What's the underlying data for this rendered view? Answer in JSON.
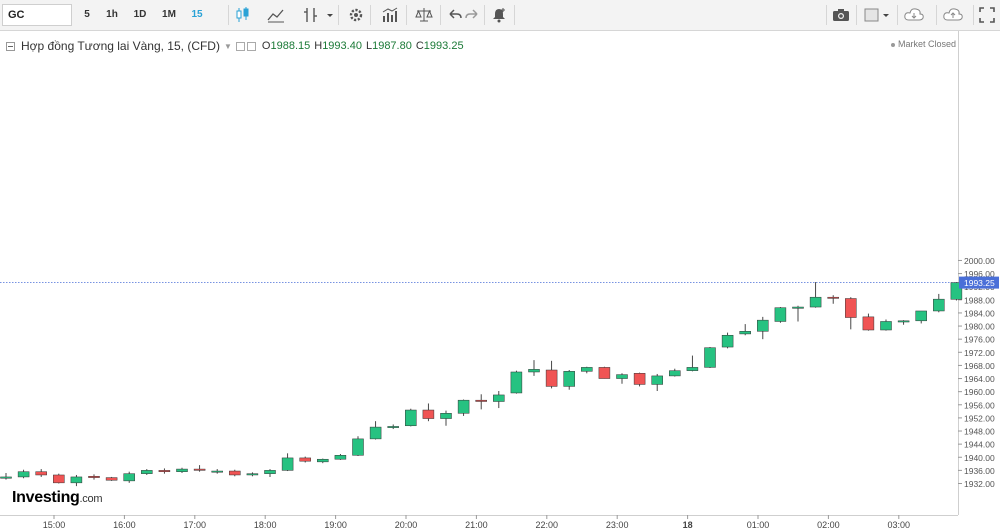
{
  "toolbar": {
    "symbol": "GC",
    "intervals": [
      "5",
      "1h",
      "1D",
      "1M",
      "15"
    ],
    "active_interval": "15",
    "icons": [
      "candle-style-icon",
      "indicators-icon",
      "chart-type-icon",
      "chevron-down-icon",
      "settings-icon",
      "studies-icon",
      "compare-icon",
      "undo-icon",
      "redo-icon",
      "alert-icon",
      "camera-icon",
      "color-box-icon",
      "chevron-down-icon",
      "cloud-download-icon",
      "cloud-upload-icon",
      "fullscreen-icon"
    ]
  },
  "legend": {
    "title": "Hợp đồng Tương lai Vàng, 15, (CFD)",
    "open_label": "O",
    "open": "1988.15",
    "high_label": "H",
    "high": "1993.40",
    "low_label": "L",
    "low": "1987.80",
    "close_label": "C",
    "close": "1993.25"
  },
  "status": {
    "market": "Market Closed"
  },
  "watermark": {
    "brand": "Investing",
    "suffix": ".com"
  },
  "chart_data": {
    "type": "candlestick",
    "interval": "15",
    "y_range": [
      1928,
      2000
    ],
    "y_ticks": [
      "1932.00",
      "1936.00",
      "1940.00",
      "1944.00",
      "1948.00",
      "1952.00",
      "1956.00",
      "1960.00",
      "1964.00",
      "1968.00",
      "1972.00",
      "1976.00",
      "1980.00",
      "1984.00",
      "1988.00",
      "1992.00",
      "1996.00",
      "2000.00"
    ],
    "x_ticks": [
      {
        "label": "15:00",
        "index": 3
      },
      {
        "label": "16:00",
        "index": 7
      },
      {
        "label": "17:00",
        "index": 11
      },
      {
        "label": "18:00",
        "index": 15
      },
      {
        "label": "19:00",
        "index": 19
      },
      {
        "label": "20:00",
        "index": 23
      },
      {
        "label": "21:00",
        "index": 27
      },
      {
        "label": "22:00",
        "index": 31
      },
      {
        "label": "23:00",
        "index": 35
      },
      {
        "label": "18",
        "index": 39
      },
      {
        "label": "01:00",
        "index": 43
      },
      {
        "label": "02:00",
        "index": 47
      },
      {
        "label": "03:00",
        "index": 51
      }
    ],
    "last_price": "1993.25",
    "up_color": "#26c281",
    "down_color": "#f05454",
    "candles": [
      {
        "o": 1933.6,
        "h": 1935.2,
        "l": 1933.2,
        "c": 1934.0
      },
      {
        "o": 1934.0,
        "h": 1936.2,
        "l": 1933.6,
        "c": 1935.6
      },
      {
        "o": 1935.6,
        "h": 1936.4,
        "l": 1934.0,
        "c": 1934.6
      },
      {
        "o": 1934.6,
        "h": 1935.0,
        "l": 1932.0,
        "c": 1932.2
      },
      {
        "o": 1932.2,
        "h": 1934.6,
        "l": 1931.2,
        "c": 1934.0
      },
      {
        "o": 1934.2,
        "h": 1934.8,
        "l": 1933.2,
        "c": 1933.8
      },
      {
        "o": 1933.8,
        "h": 1934.0,
        "l": 1932.8,
        "c": 1933.0
      },
      {
        "o": 1932.8,
        "h": 1935.6,
        "l": 1932.2,
        "c": 1935.0
      },
      {
        "o": 1935.0,
        "h": 1936.4,
        "l": 1934.6,
        "c": 1936.0
      },
      {
        "o": 1936.0,
        "h": 1936.6,
        "l": 1935.0,
        "c": 1935.6
      },
      {
        "o": 1935.6,
        "h": 1936.8,
        "l": 1935.2,
        "c": 1936.4
      },
      {
        "o": 1936.4,
        "h": 1937.6,
        "l": 1935.6,
        "c": 1936.0
      },
      {
        "o": 1935.6,
        "h": 1936.4,
        "l": 1935.0,
        "c": 1935.8
      },
      {
        "o": 1935.8,
        "h": 1936.2,
        "l": 1934.2,
        "c": 1934.6
      },
      {
        "o": 1934.6,
        "h": 1935.4,
        "l": 1934.2,
        "c": 1935.0
      },
      {
        "o": 1935.0,
        "h": 1936.4,
        "l": 1934.0,
        "c": 1936.0
      },
      {
        "o": 1936.0,
        "h": 1941.2,
        "l": 1935.8,
        "c": 1939.8
      },
      {
        "o": 1939.8,
        "h": 1940.2,
        "l": 1938.4,
        "c": 1938.8
      },
      {
        "o": 1938.6,
        "h": 1939.6,
        "l": 1938.2,
        "c": 1939.4
      },
      {
        "o": 1939.4,
        "h": 1941.0,
        "l": 1939.2,
        "c": 1940.6
      },
      {
        "o": 1940.6,
        "h": 1946.4,
        "l": 1940.4,
        "c": 1945.6
      },
      {
        "o": 1945.6,
        "h": 1951.0,
        "l": 1945.4,
        "c": 1949.2
      },
      {
        "o": 1949.2,
        "h": 1950.0,
        "l": 1948.6,
        "c": 1949.4
      },
      {
        "o": 1949.6,
        "h": 1954.8,
        "l": 1949.4,
        "c": 1954.4
      },
      {
        "o": 1954.4,
        "h": 1956.4,
        "l": 1951.0,
        "c": 1951.8
      },
      {
        "o": 1951.8,
        "h": 1954.2,
        "l": 1949.6,
        "c": 1953.4
      },
      {
        "o": 1953.4,
        "h": 1957.6,
        "l": 1952.6,
        "c": 1957.4
      },
      {
        "o": 1957.4,
        "h": 1959.2,
        "l": 1954.6,
        "c": 1957.0
      },
      {
        "o": 1957.0,
        "h": 1960.2,
        "l": 1955.0,
        "c": 1959.0
      },
      {
        "o": 1959.6,
        "h": 1966.4,
        "l": 1959.4,
        "c": 1966.0
      },
      {
        "o": 1966.0,
        "h": 1969.6,
        "l": 1964.8,
        "c": 1966.8
      },
      {
        "o": 1966.6,
        "h": 1969.4,
        "l": 1961.0,
        "c": 1961.6
      },
      {
        "o": 1961.6,
        "h": 1966.6,
        "l": 1960.6,
        "c": 1966.2
      },
      {
        "o": 1966.2,
        "h": 1967.6,
        "l": 1965.6,
        "c": 1967.4
      },
      {
        "o": 1967.4,
        "h": 1967.6,
        "l": 1964.0,
        "c": 1964.0
      },
      {
        "o": 1964.0,
        "h": 1965.6,
        "l": 1962.4,
        "c": 1965.2
      },
      {
        "o": 1965.6,
        "h": 1965.8,
        "l": 1961.6,
        "c": 1962.2
      },
      {
        "o": 1962.2,
        "h": 1965.4,
        "l": 1960.2,
        "c": 1964.8
      },
      {
        "o": 1964.8,
        "h": 1967.0,
        "l": 1964.6,
        "c": 1966.4
      },
      {
        "o": 1966.4,
        "h": 1971.0,
        "l": 1966.2,
        "c": 1967.4
      },
      {
        "o": 1967.4,
        "h": 1973.6,
        "l": 1967.2,
        "c": 1973.4
      },
      {
        "o": 1973.6,
        "h": 1978.0,
        "l": 1973.2,
        "c": 1977.2
      },
      {
        "o": 1977.6,
        "h": 1980.6,
        "l": 1977.2,
        "c": 1978.4
      },
      {
        "o": 1978.4,
        "h": 1982.8,
        "l": 1976.0,
        "c": 1981.8
      },
      {
        "o": 1981.4,
        "h": 1985.8,
        "l": 1981.0,
        "c": 1985.6
      },
      {
        "o": 1985.4,
        "h": 1986.2,
        "l": 1981.4,
        "c": 1985.8
      },
      {
        "o": 1985.8,
        "h": 1993.4,
        "l": 1985.6,
        "c": 1988.8
      },
      {
        "o": 1988.8,
        "h": 1989.4,
        "l": 1986.8,
        "c": 1988.6
      },
      {
        "o": 1988.4,
        "h": 1988.8,
        "l": 1979.0,
        "c": 1982.6
      },
      {
        "o": 1982.8,
        "h": 1983.8,
        "l": 1978.6,
        "c": 1978.8
      },
      {
        "o": 1978.8,
        "h": 1982.0,
        "l": 1978.6,
        "c": 1981.4
      },
      {
        "o": 1981.4,
        "h": 1981.8,
        "l": 1980.4,
        "c": 1981.6
      },
      {
        "o": 1981.6,
        "h": 1984.6,
        "l": 1980.8,
        "c": 1984.6
      },
      {
        "o": 1984.6,
        "h": 1989.8,
        "l": 1984.2,
        "c": 1988.2
      },
      {
        "o": 1988.15,
        "h": 1993.4,
        "l": 1987.8,
        "c": 1993.25
      }
    ]
  }
}
